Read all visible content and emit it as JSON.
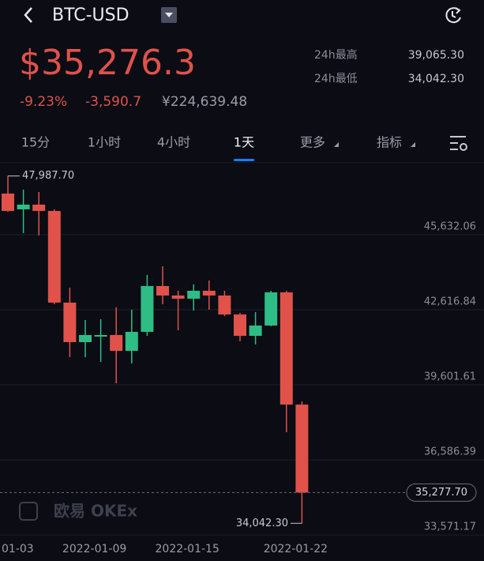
{
  "header": {
    "symbol": "BTC-USD",
    "price": "$35,276.3",
    "change_pct": "-9.23%",
    "change": "-3,590.7",
    "cny": "¥224,639.48",
    "stats": [
      {
        "label": "24h最高",
        "value": "39,065.30"
      },
      {
        "label": "24h最低",
        "value": "34,042.30"
      }
    ]
  },
  "tabs": {
    "items": [
      "15分",
      "1小时",
      "4小时",
      "1天",
      "更多",
      "指标"
    ],
    "active": 3
  },
  "watermark": "欧易 OKEx",
  "chart_data": {
    "type": "candlestick",
    "categories": [
      "01-03",
      null,
      null,
      null,
      null,
      null,
      "2022-01-09",
      null,
      null,
      null,
      null,
      null,
      "2022-01-15",
      null,
      null,
      null,
      null,
      null,
      null,
      "2022-01-22"
    ],
    "open": [
      47282,
      46648,
      46838,
      46584,
      42903,
      41316,
      41538,
      41602,
      40967,
      41729,
      43569,
      43188,
      43061,
      43379,
      43188,
      42427,
      41570,
      41983,
      43315,
      38809
    ],
    "high": [
      47987.7,
      47441,
      47345,
      46648,
      43506,
      42205,
      42237,
      42713,
      42618,
      44013,
      44363,
      43379,
      43633,
      43791,
      43379,
      42490,
      42522,
      43379,
      43379,
      38936
    ],
    "low": [
      46550,
      45695,
      45600,
      42839,
      40713,
      40713,
      40522,
      39665,
      40459,
      41570,
      42839,
      41792,
      42585,
      42618,
      42363,
      41348,
      41221,
      41951,
      37698,
      34042.3
    ],
    "close": [
      46584,
      46838,
      46584,
      42903,
      41316,
      41602,
      41602,
      40967,
      41729,
      43569,
      43188,
      43061,
      43379,
      43188,
      42427,
      41570,
      41983,
      43315,
      38809,
      35277.7
    ],
    "up_color": "#2ebd85",
    "down_color": "#e0524a",
    "ylim": [
      33480,
      48550
    ],
    "yticks": [
      {
        "value": 45632.06,
        "label": "45,632.06"
      },
      {
        "value": 42616.84,
        "label": "42,616.84"
      },
      {
        "value": 39601.61,
        "label": "39,601.61"
      },
      {
        "value": 36586.39,
        "label": "36,586.39"
      },
      {
        "value": 33571.17,
        "label": "33,571.17"
      }
    ],
    "grid": true,
    "annotations": [
      {
        "value": 47987.7,
        "label": "47,987.70"
      },
      {
        "value": 34042.3,
        "label": "34,042.30"
      },
      {
        "value": 35277.7,
        "label": "35,277.70"
      }
    ]
  }
}
